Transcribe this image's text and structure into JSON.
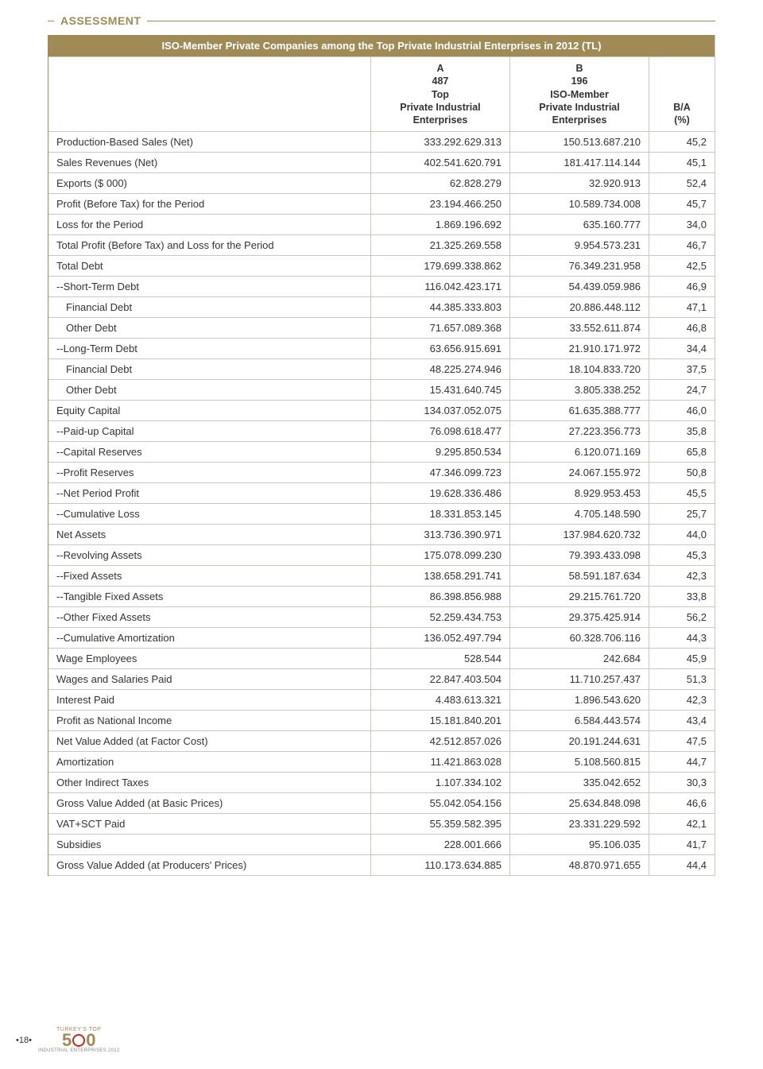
{
  "section_label": "ASSESSMENT",
  "table_title": "ISO-Member Private Companies among the Top Private Industrial Enterprises in 2012 (TL)",
  "col_a": {
    "letter": "A",
    "count": "487",
    "desc1": "Top",
    "desc2": "Private Industrial",
    "desc3": "Enterprises"
  },
  "col_b": {
    "letter": "B",
    "count": "196",
    "desc1": "ISO-Member",
    "desc2": "Private Industrial",
    "desc3": "Enterprises"
  },
  "col_ratio": {
    "line1": "B/A",
    "line2": "(%)"
  },
  "rows": [
    {
      "label": "Production-Based Sales (Net)",
      "indent": 0,
      "a": "333.292.629.313",
      "b": "150.513.687.210",
      "r": "45,2"
    },
    {
      "label": "Sales Revenues (Net)",
      "indent": 0,
      "a": "402.541.620.791",
      "b": "181.417.114.144",
      "r": "45,1"
    },
    {
      "label": "Exports ($ 000)",
      "indent": 0,
      "a": "62.828.279",
      "b": "32.920.913",
      "r": "52,4"
    },
    {
      "label": "Profit (Before Tax) for the Period",
      "indent": 0,
      "a": "23.194.466.250",
      "b": "10.589.734.008",
      "r": "45,7"
    },
    {
      "label": "Loss for the Period",
      "indent": 0,
      "a": "1.869.196.692",
      "b": "635.160.777",
      "r": "34,0"
    },
    {
      "label": "Total Profit (Before Tax) and Loss for the Period",
      "indent": 0,
      "a": "21.325.269.558",
      "b": "9.954.573.231",
      "r": "46,7"
    },
    {
      "label": "Total Debt",
      "indent": 0,
      "a": "179.699.338.862",
      "b": "76.349.231.958",
      "r": "42,5"
    },
    {
      "label": "--Short-Term Debt",
      "indent": 0,
      "a": "116.042.423.171",
      "b": "54.439.059.986",
      "r": "46,9"
    },
    {
      "label": "Financial Debt",
      "indent": 1,
      "a": "44.385.333.803",
      "b": "20.886.448.112",
      "r": "47,1"
    },
    {
      "label": "Other Debt",
      "indent": 1,
      "a": "71.657.089.368",
      "b": "33.552.611.874",
      "r": "46,8"
    },
    {
      "label": "--Long-Term Debt",
      "indent": 0,
      "a": "63.656.915.691",
      "b": "21.910.171.972",
      "r": "34,4"
    },
    {
      "label": "Financial Debt",
      "indent": 1,
      "a": "48.225.274.946",
      "b": "18.104.833.720",
      "r": "37,5"
    },
    {
      "label": "Other Debt",
      "indent": 1,
      "a": "15.431.640.745",
      "b": "3.805.338.252",
      "r": "24,7"
    },
    {
      "label": "Equity Capital",
      "indent": 0,
      "a": "134.037.052.075",
      "b": "61.635.388.777",
      "r": "46,0"
    },
    {
      "label": "--Paid-up Capital",
      "indent": 0,
      "a": "76.098.618.477",
      "b": "27.223.356.773",
      "r": "35,8"
    },
    {
      "label": "--Capital Reserves",
      "indent": 0,
      "a": "9.295.850.534",
      "b": "6.120.071.169",
      "r": "65,8"
    },
    {
      "label": "--Profit Reserves",
      "indent": 0,
      "a": "47.346.099.723",
      "b": "24.067.155.972",
      "r": "50,8"
    },
    {
      "label": "--Net Period Profit",
      "indent": 0,
      "a": "19.628.336.486",
      "b": "8.929.953.453",
      "r": "45,5"
    },
    {
      "label": "--Cumulative Loss",
      "indent": 0,
      "a": "18.331.853.145",
      "b": "4.705.148.590",
      "r": "25,7"
    },
    {
      "label": "Net Assets",
      "indent": 0,
      "a": "313.736.390.971",
      "b": "137.984.620.732",
      "r": "44,0"
    },
    {
      "label": "--Revolving Assets",
      "indent": 0,
      "a": "175.078.099.230",
      "b": "79.393.433.098",
      "r": "45,3"
    },
    {
      "label": "--Fixed Assets",
      "indent": 0,
      "a": "138.658.291.741",
      "b": "58.591.187.634",
      "r": "42,3"
    },
    {
      "label": "--Tangible Fixed Assets",
      "indent": 0,
      "a": "86.398.856.988",
      "b": "29.215.761.720",
      "r": "33,8"
    },
    {
      "label": "--Other Fixed Assets",
      "indent": 0,
      "a": "52.259.434.753",
      "b": "29.375.425.914",
      "r": "56,2"
    },
    {
      "label": "--Cumulative Amortization",
      "indent": 0,
      "a": "136.052.497.794",
      "b": "60.328.706.116",
      "r": "44,3"
    },
    {
      "label": "Wage Employees",
      "indent": 0,
      "a": "528.544",
      "b": "242.684",
      "r": "45,9"
    },
    {
      "label": "Wages and Salaries Paid",
      "indent": 0,
      "a": "22.847.403.504",
      "b": "11.710.257.437",
      "r": "51,3"
    },
    {
      "label": "Interest Paid",
      "indent": 0,
      "a": "4.483.613.321",
      "b": "1.896.543.620",
      "r": "42,3"
    },
    {
      "label": "Profit as National Income",
      "indent": 0,
      "a": "15.181.840.201",
      "b": "6.584.443.574",
      "r": "43,4"
    },
    {
      "label": "Net Value Added (at Factor Cost)",
      "indent": 0,
      "a": "42.512.857.026",
      "b": "20.191.244.631",
      "r": "47,5"
    },
    {
      "label": "Amortization",
      "indent": 0,
      "a": "11.421.863.028",
      "b": "5.108.560.815",
      "r": "44,7"
    },
    {
      "label": "Other Indirect Taxes",
      "indent": 0,
      "a": "1.107.334.102",
      "b": "335.042.652",
      "r": "30,3"
    },
    {
      "label": "Gross Value Added (at Basic Prices)",
      "indent": 0,
      "a": "55.042.054.156",
      "b": "25.634.848.098",
      "r": "46,6"
    },
    {
      "label": "VAT+SCT Paid",
      "indent": 0,
      "a": "55.359.582.395",
      "b": "23.331.229.592",
      "r": "42,1"
    },
    {
      "label": "Subsidies",
      "indent": 0,
      "a": "228.001.666",
      "b": "95.106.035",
      "r": "41,7"
    },
    {
      "label": "Gross Value Added (at Producers' Prices)",
      "indent": 0,
      "a": "110.173.634.885",
      "b": "48.870.971.655",
      "r": "44,4"
    }
  ],
  "footer": {
    "page_num": "•18•",
    "logo_top": "TURKEY'S TOP",
    "logo_500_5": "5",
    "logo_500_0": "0",
    "logo_sub": "INDUSTRIAL ENTERPRISES 2012"
  }
}
